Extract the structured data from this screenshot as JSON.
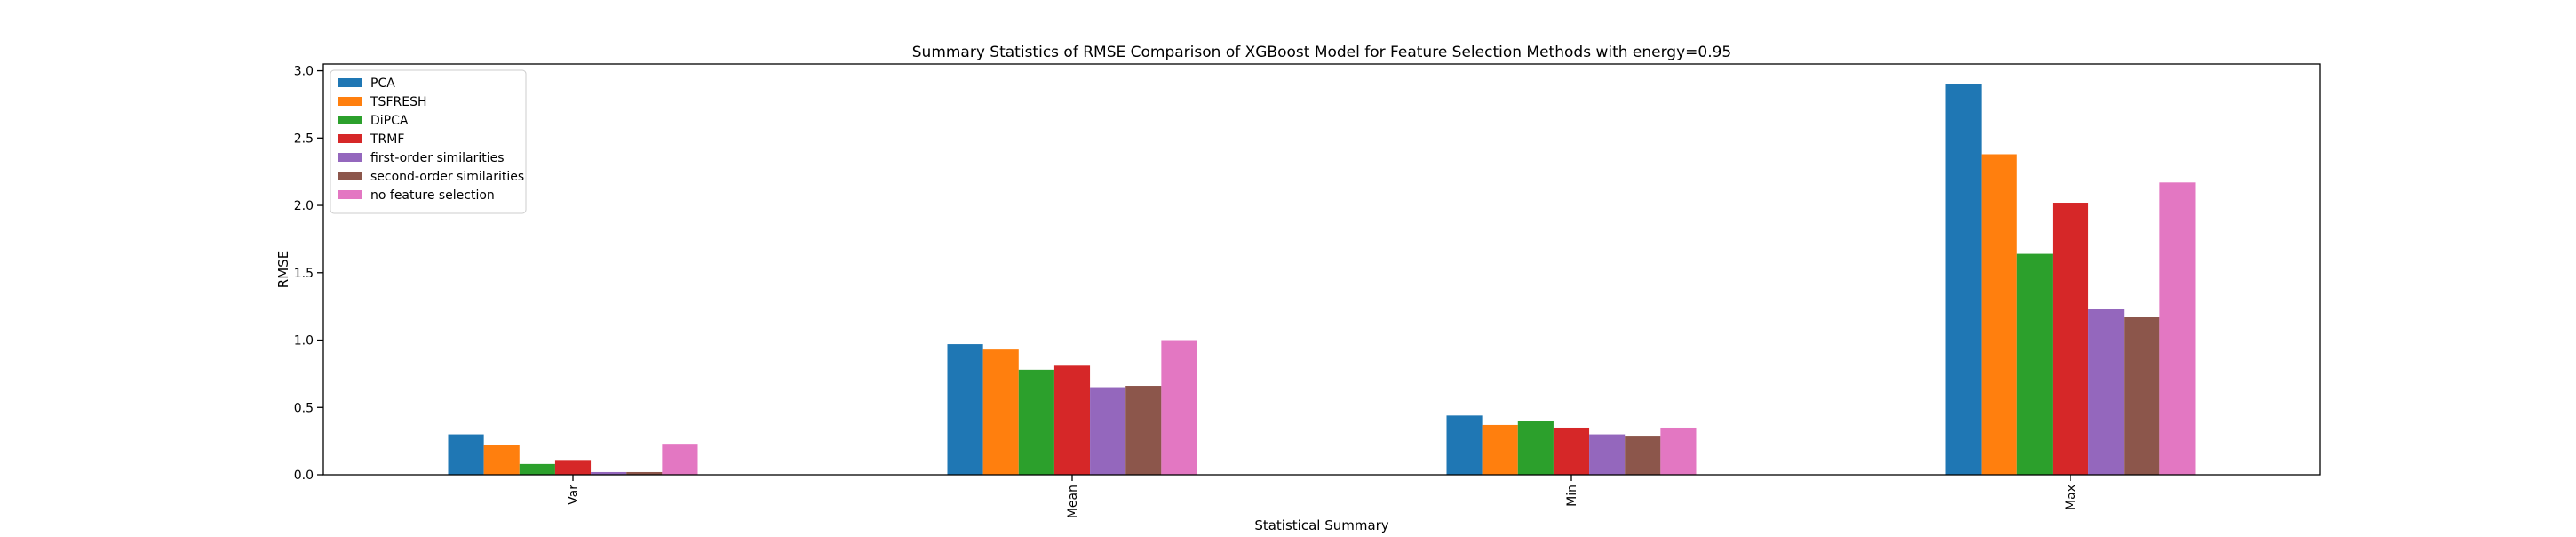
{
  "chart_data": {
    "type": "bar",
    "title": "Summary Statistics of RMSE Comparison of XGBoost Model for Feature Selection Methods with energy=0.95",
    "xlabel": "Statistical Summary",
    "ylabel": "RMSE",
    "categories": [
      "Var",
      "Mean",
      "Min",
      "Max"
    ],
    "ylim": [
      0,
      3.05
    ],
    "yticks": [
      "0.0",
      "0.5",
      "1.0",
      "1.5",
      "2.0",
      "2.5",
      "3.0"
    ],
    "grid": false,
    "legend_position": "top-left",
    "series": [
      {
        "name": "PCA",
        "color": "#1f77b4",
        "values": [
          0.3,
          0.97,
          0.44,
          2.9
        ]
      },
      {
        "name": "TSFRESH",
        "color": "#ff7f0e",
        "values": [
          0.22,
          0.93,
          0.37,
          2.38
        ]
      },
      {
        "name": "DiPCA",
        "color": "#2ca02c",
        "values": [
          0.08,
          0.78,
          0.4,
          1.64
        ]
      },
      {
        "name": "TRMF",
        "color": "#d62728",
        "values": [
          0.11,
          0.81,
          0.35,
          2.02
        ]
      },
      {
        "name": "first-order similarities",
        "color": "#9467bd",
        "values": [
          0.02,
          0.65,
          0.3,
          1.23
        ]
      },
      {
        "name": "second-order similarities",
        "color": "#8c564b",
        "values": [
          0.02,
          0.66,
          0.29,
          1.17
        ]
      },
      {
        "name": "no feature selection",
        "color": "#e377c2",
        "values": [
          0.23,
          1.0,
          0.35,
          2.17
        ]
      }
    ]
  }
}
